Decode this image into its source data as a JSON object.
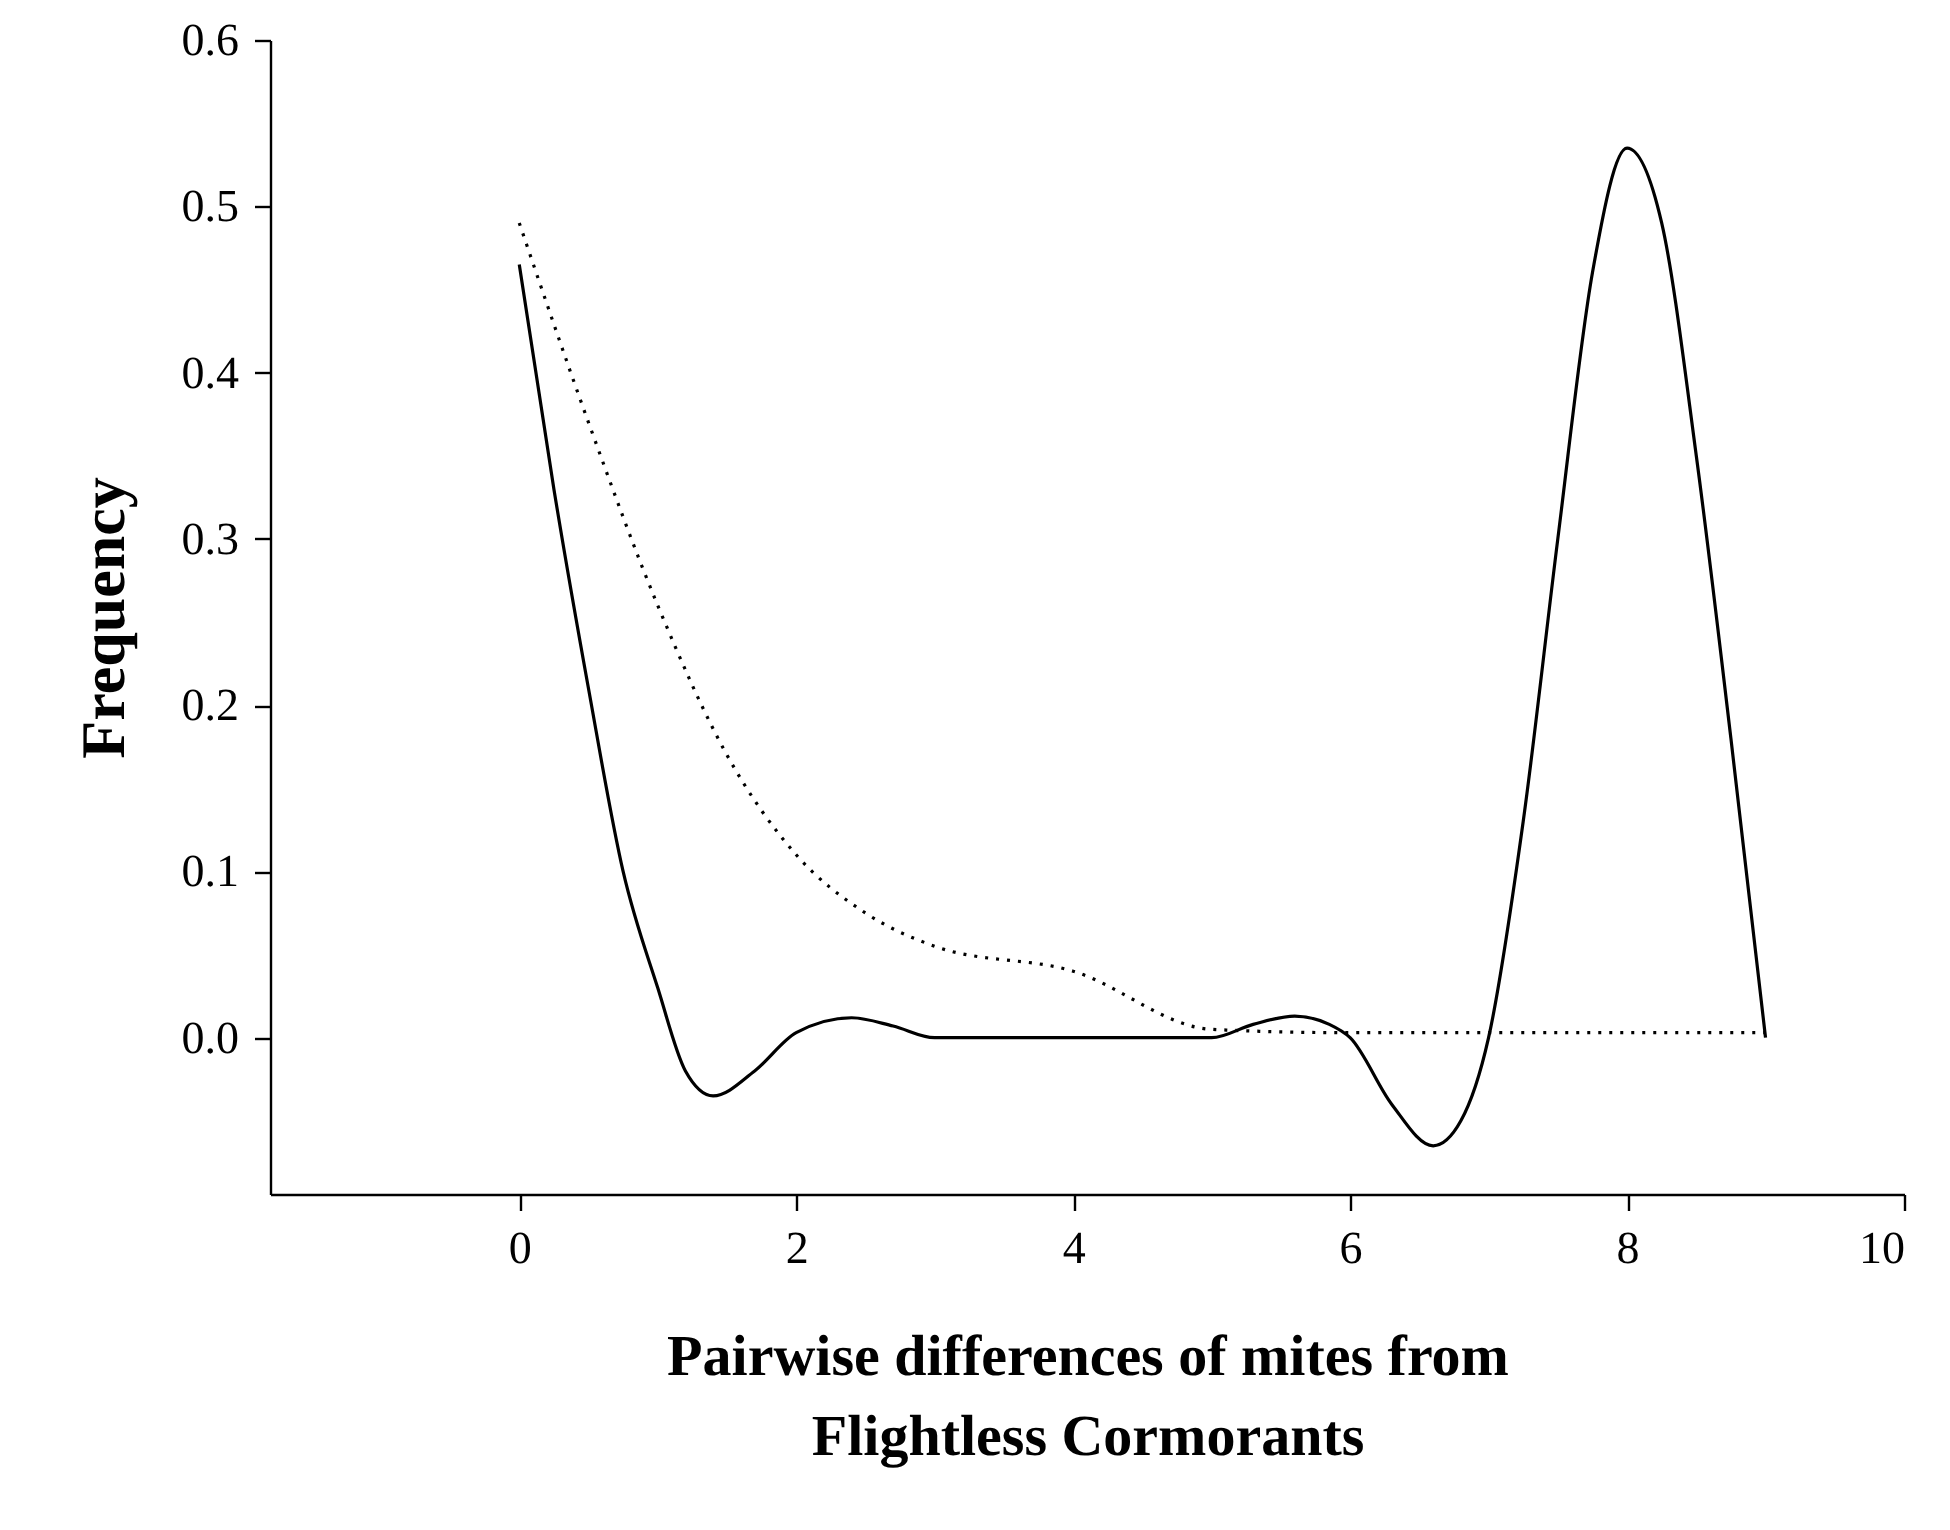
{
  "chart_data": {
    "type": "line",
    "xlabel": "Pairwise differences of mites from\nFlightless Cormorants",
    "ylabel": "Frequency",
    "xlim": [
      -1.8,
      10
    ],
    "xticks": [
      0,
      2,
      4,
      6,
      8,
      10
    ],
    "ylim": [
      -0.094,
      0.6
    ],
    "yticks": [
      {
        "value": 0,
        "label": "0.0"
      },
      {
        "value": 0.1,
        "label": "0.1"
      },
      {
        "value": 0.2,
        "label": "0.2"
      },
      {
        "value": 0.3,
        "label": "0.3"
      },
      {
        "value": 0.4,
        "label": "0.4"
      },
      {
        "value": 0.5,
        "label": "0.5"
      },
      {
        "value": 0.6,
        "label": "0.6"
      }
    ],
    "grid": false,
    "series": [
      {
        "color": "#000000",
        "line_style": "solid",
        "x": [
          0,
          0.25,
          0.5,
          0.75,
          1,
          1.2,
          1.4,
          1.7,
          2,
          2.4,
          2.7,
          3,
          5,
          5.3,
          5.6,
          5.85,
          6,
          6.3,
          6.6,
          6.8,
          7,
          7.25,
          7.5,
          7.75,
          8,
          8.25,
          8.5,
          8.75,
          9
        ],
        "values": [
          0.465,
          0.33,
          0.21,
          0.1,
          0.03,
          -0.02,
          -0.035,
          -0.02,
          0.003,
          0.012,
          0.007,
          0,
          0,
          0.008,
          0.013,
          0.008,
          0,
          -0.04,
          -0.065,
          -0.05,
          0,
          0.13,
          0.3,
          0.46,
          0.535,
          0.49,
          0.35,
          0.18,
          0
        ]
      },
      {
        "color": "#000000",
        "line_style": "dotted",
        "x": [
          0,
          0.5,
          1,
          1.5,
          2,
          2.5,
          3,
          4,
          5,
          6,
          9
        ],
        "values": [
          0.49,
          0.37,
          0.26,
          0.17,
          0.11,
          0.075,
          0.055,
          0.04,
          0.005,
          0.003,
          0.003
        ]
      }
    ]
  }
}
